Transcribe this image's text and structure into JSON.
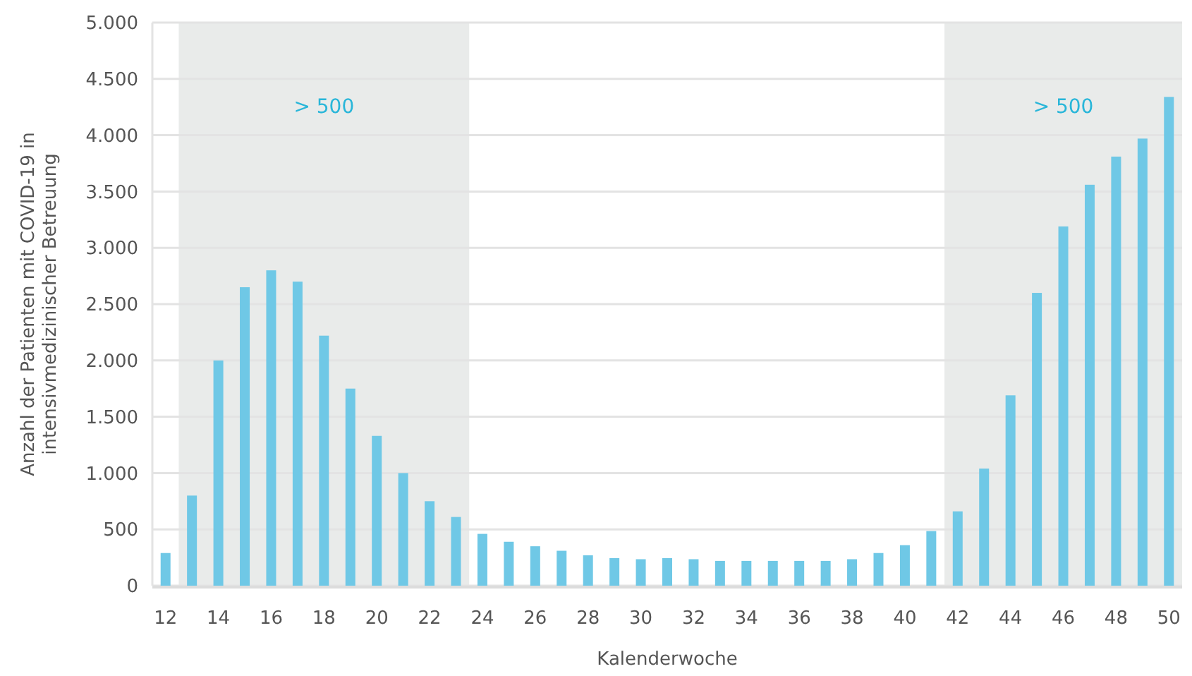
{
  "chart_data": {
    "type": "bar",
    "xlabel": "Kalenderwoche",
    "ylabel": "Anzahl der Patienten mit COVID-19 in\nintensivmedizinischer Betreuung",
    "x": [
      12,
      13,
      14,
      15,
      16,
      17,
      18,
      19,
      20,
      21,
      22,
      23,
      24,
      25,
      26,
      27,
      28,
      29,
      30,
      31,
      32,
      33,
      34,
      35,
      36,
      37,
      38,
      39,
      40,
      41,
      42,
      43,
      44,
      45,
      46,
      47,
      48,
      49,
      50
    ],
    "values": [
      290,
      800,
      2000,
      2650,
      2800,
      2700,
      2220,
      1750,
      1330,
      1000,
      750,
      610,
      460,
      390,
      350,
      310,
      270,
      245,
      235,
      245,
      235,
      220,
      220,
      220,
      220,
      220,
      235,
      290,
      360,
      485,
      660,
      1040,
      1690,
      2600,
      3190,
      3560,
      3810,
      3970,
      4340
    ],
    "color": "#6fc8e6",
    "xlim": [
      11.5,
      50.5
    ],
    "xticks": [
      12,
      14,
      16,
      18,
      20,
      22,
      24,
      26,
      28,
      30,
      32,
      34,
      36,
      38,
      40,
      42,
      44,
      46,
      48,
      50
    ],
    "ylim": [
      0,
      5000
    ],
    "yticks": [
      0,
      500,
      {
        "value": 1000,
        "label": "1.000"
      },
      {
        "value": 1500,
        "label": "1.500"
      },
      {
        "value": 2000,
        "label": "2.000"
      },
      {
        "value": 2500,
        "label": "2.500"
      },
      {
        "value": 3000,
        "label": "3.000"
      },
      {
        "value": 3500,
        "label": "3.500"
      },
      {
        "value": 4000,
        "label": "4.000"
      },
      {
        "value": 4500,
        "label": "4.500"
      },
      {
        "value": 5000,
        "label": "5.000"
      }
    ],
    "grid": "y",
    "bands": [
      {
        "axis": "x",
        "from": 12.5,
        "to": 23.5,
        "label": "> 500",
        "color": "#e9ebea"
      },
      {
        "axis": "x",
        "from": 41.5,
        "to": 50.5,
        "label": "> 500",
        "color": "#e9ebea"
      }
    ]
  }
}
